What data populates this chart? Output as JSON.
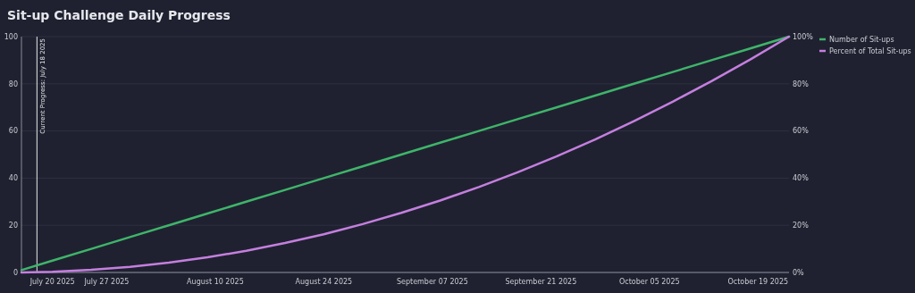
{
  "chart_data": {
    "type": "line",
    "title": "Sit-up Challenge Daily Progress",
    "x": [
      "2025-07-16",
      "2025-07-20",
      "2025-07-25",
      "2025-07-30",
      "2025-08-04",
      "2025-08-09",
      "2025-08-14",
      "2025-08-19",
      "2025-08-24",
      "2025-08-29",
      "2025-09-03",
      "2025-09-08",
      "2025-09-13",
      "2025-09-18",
      "2025-09-23",
      "2025-09-28",
      "2025-10-03",
      "2025-10-08",
      "2025-10-13",
      "2025-10-18",
      "2025-10-23"
    ],
    "series": [
      {
        "name": "Number of Sit-ups",
        "color": "#3fb46a",
        "values": [
          1,
          5,
          10,
          15,
          20,
          25,
          30,
          35,
          40,
          45,
          50,
          55,
          60,
          65,
          70,
          75,
          80,
          85,
          90,
          95,
          100
        ]
      },
      {
        "name": "Percent of Total Sit-ups",
        "color": "#c47fde",
        "axis": "y2",
        "values": [
          0,
          0.3,
          1.1,
          2.4,
          4.2,
          6.4,
          9.2,
          12.5,
          16.2,
          20.5,
          25.3,
          30.5,
          36.2,
          42.5,
          49.2,
          56.4,
          64.2,
          72.4,
          81.1,
          90.3,
          100
        ]
      }
    ],
    "xlim": [
      "2025-07-16",
      "2025-10-23"
    ],
    "xticks": [
      {
        "value": "2025-07-20",
        "label": "July 20 2025"
      },
      {
        "value": "2025-07-27",
        "label": "July 27 2025"
      },
      {
        "value": "2025-08-10",
        "label": "August 10 2025"
      },
      {
        "value": "2025-08-24",
        "label": "August 24 2025"
      },
      {
        "value": "2025-09-07",
        "label": "September 07 2025"
      },
      {
        "value": "2025-09-21",
        "label": "September 21 2025"
      },
      {
        "value": "2025-10-05",
        "label": "October 05 2025"
      },
      {
        "value": "2025-10-19",
        "label": "October 19 2025"
      }
    ],
    "ylim": [
      0,
      100
    ],
    "yticks": [
      0,
      20,
      40,
      60,
      80,
      100
    ],
    "y2lim": [
      0,
      100
    ],
    "y2ticks": [
      {
        "value": 0,
        "label": "0%"
      },
      {
        "value": 20,
        "label": "20%"
      },
      {
        "value": 40,
        "label": "40%"
      },
      {
        "value": 60,
        "label": "60%"
      },
      {
        "value": 80,
        "label": "80%"
      },
      {
        "value": 100,
        "label": "100%"
      }
    ],
    "ref_lines": [
      {
        "axis": "x",
        "value": "2025-07-18",
        "label": "Current Progress: July 18 2025",
        "color": "#e8e8e8"
      }
    ],
    "grid": "y",
    "legend": "top right",
    "marker": "none",
    "line_style": "solid"
  }
}
